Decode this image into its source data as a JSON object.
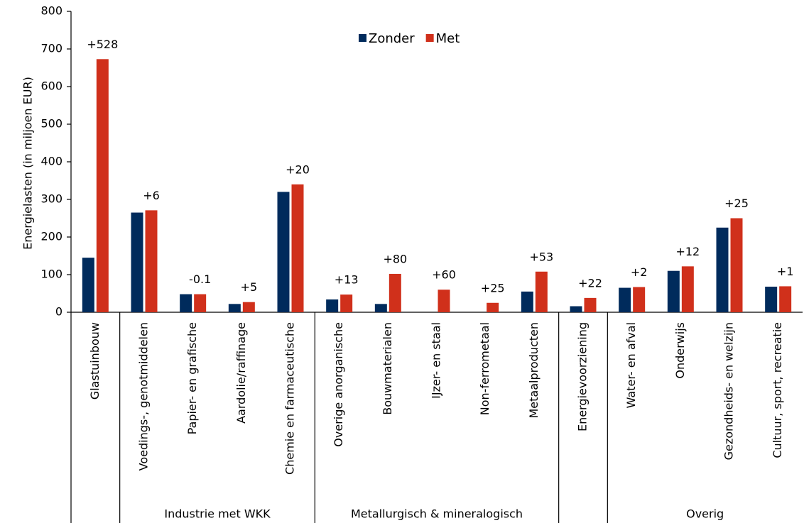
{
  "chart_data": {
    "type": "bar",
    "y_axis_label": "Energielasten (in miljoen EUR)",
    "groups": [
      {
        "categories": [
          "Glastuinbouw"
        ]
      },
      {
        "name": "Industrie met WKK",
        "categories": [
          "Voedings-, genotmiddelen",
          "Papier- en grafische",
          "Aardolie/raffinage",
          "Chemie en farmaceutische"
        ]
      },
      {
        "name": "Metallurgisch & mineralogisch",
        "categories": [
          "Overige anorganische",
          "Bouwmaterialen",
          "IJzer- en staal",
          "Non-ferrometaal",
          "Metaalproducten"
        ]
      },
      {
        "categories": [
          "Energievoorziening"
        ]
      },
      {
        "name": "Overig",
        "categories": [
          "Water- en afval",
          "Onderwijs",
          "Gezondheids- en welzijn",
          "Cultuur, sport, recreatie"
        ]
      }
    ],
    "series": [
      {
        "name": "Zonder",
        "color": "#002b5c",
        "values": [
          145,
          265,
          48,
          22,
          320,
          34,
          22,
          0,
          0,
          55,
          16,
          65,
          110,
          225,
          68
        ]
      },
      {
        "name": "Met",
        "color": "#d0301b",
        "values": [
          673,
          271,
          48,
          27,
          340,
          47,
          102,
          60,
          25,
          108,
          38,
          67,
          122,
          250,
          69
        ]
      }
    ],
    "difference_labels": [
      "+528",
      "+6",
      "-0.1",
      "+5",
      "+20",
      "+13",
      "+80",
      "+60",
      "+25",
      "+53",
      "+22",
      "+2",
      "+12",
      "+25",
      "+1"
    ],
    "ylim": [
      0,
      800
    ],
    "yticks": [
      0,
      100,
      200,
      300,
      400,
      500,
      600,
      700,
      800
    ],
    "legend": "top"
  }
}
